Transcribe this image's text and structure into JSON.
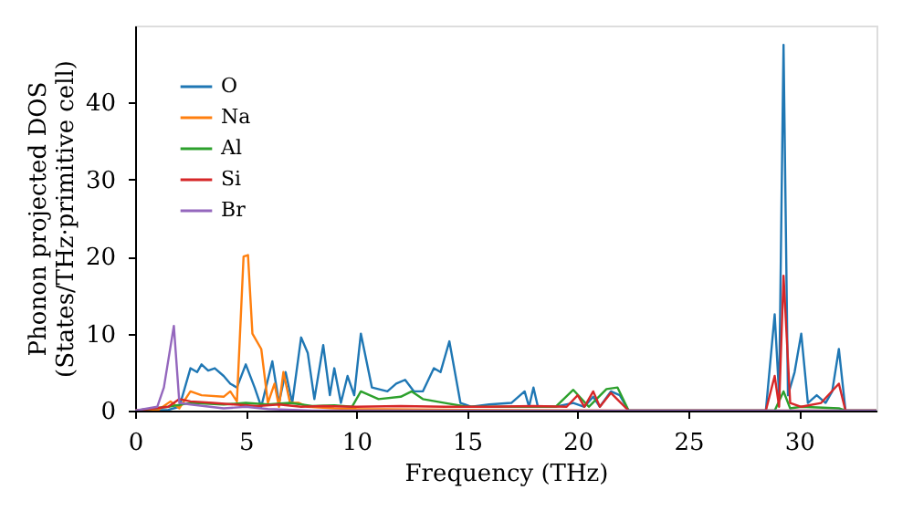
{
  "chart_data": {
    "type": "line",
    "xlabel": "Frequency (THz)",
    "ylabel": "Phonon projected DOS\n(States/THz·primitive cell)",
    "xlim": [
      0,
      33.5
    ],
    "ylim": [
      0,
      50
    ],
    "xticks": [
      0,
      5,
      10,
      15,
      20,
      25,
      30
    ],
    "yticks": [
      0,
      10,
      20,
      30,
      40
    ],
    "grid": false,
    "legend": "top left",
    "line_style": "solid",
    "marker": "none",
    "series": [
      {
        "name": "O",
        "color": "#1f77b4",
        "x": [
          0,
          1.5,
          2.0,
          2.5,
          2.8,
          3.0,
          3.3,
          3.6,
          4.0,
          4.3,
          4.6,
          5.0,
          5.4,
          5.7,
          6.2,
          6.5,
          6.8,
          7.1,
          7.5,
          7.8,
          8.1,
          8.5,
          8.8,
          9.0,
          9.3,
          9.6,
          9.9,
          10.2,
          10.7,
          11.4,
          11.8,
          12.2,
          12.6,
          13.0,
          13.5,
          13.8,
          14.2,
          14.7,
          15.2,
          16.0,
          17.0,
          17.6,
          17.8,
          18.0,
          18.2,
          19.0,
          19.8,
          20.3,
          20.7,
          21.0,
          21.5,
          21.9,
          22.3,
          28.5,
          28.9,
          29.1,
          29.3,
          29.5,
          29.8,
          30.1,
          30.4,
          30.8,
          31.2,
          31.5,
          31.8,
          32.1,
          33.5
        ],
        "values": [
          0,
          0.1,
          0.5,
          5.5,
          5.0,
          6.0,
          5.2,
          5.5,
          4.5,
          3.5,
          3.0,
          6.0,
          3.0,
          0.5,
          6.4,
          1.0,
          5.0,
          1.0,
          9.5,
          7.5,
          1.5,
          8.5,
          2.0,
          5.5,
          1.0,
          4.5,
          2.0,
          10.0,
          3.0,
          2.5,
          3.5,
          4.0,
          2.5,
          2.5,
          5.5,
          5.0,
          9.0,
          1.0,
          0.5,
          0.8,
          1.0,
          2.5,
          0.5,
          3.0,
          0.5,
          0.5,
          1.0,
          0.5,
          1.8,
          0.5,
          2.5,
          2.0,
          0,
          0,
          12.5,
          2.0,
          47.5,
          2.0,
          5.0,
          10.0,
          1.0,
          2.0,
          1.0,
          2.5,
          8.0,
          0,
          0
        ]
      },
      {
        "name": "Na",
        "color": "#ff7f0e",
        "x": [
          0,
          1.0,
          1.6,
          2.0,
          2.5,
          3.0,
          4.0,
          4.3,
          4.6,
          4.9,
          5.1,
          5.3,
          5.7,
          6.0,
          6.3,
          6.5,
          6.7,
          7.0,
          7.4,
          7.8,
          9.0,
          10.0,
          15.0,
          22.3,
          33.5
        ],
        "values": [
          0,
          0,
          1.2,
          0.3,
          2.5,
          2.0,
          1.8,
          2.5,
          1.2,
          20.0,
          20.2,
          10.0,
          8.0,
          1.0,
          3.5,
          0.5,
          5.0,
          1.0,
          1.0,
          0.5,
          0.3,
          0.2,
          0.1,
          0,
          0
        ]
      },
      {
        "name": "Al",
        "color": "#2ca02c",
        "x": [
          0,
          1.5,
          2.5,
          4.0,
          5.0,
          6.0,
          7.0,
          8.0,
          9.0,
          9.8,
          10.2,
          11.0,
          12.0,
          12.5,
          13.0,
          14.0,
          15.0,
          17.0,
          19.0,
          19.8,
          20.5,
          21.3,
          21.8,
          22.3,
          28.9,
          29.3,
          29.6,
          30.1,
          31.8,
          32.1,
          33.5
        ],
        "values": [
          0,
          0.5,
          1.0,
          0.8,
          1.0,
          0.8,
          1.0,
          0.6,
          0.7,
          0.5,
          2.5,
          1.5,
          1.8,
          2.5,
          1.5,
          1.0,
          0.5,
          0.5,
          0.5,
          2.7,
          0.5,
          2.8,
          3.0,
          0,
          0,
          2.5,
          0.3,
          0.5,
          0.3,
          0,
          0
        ]
      },
      {
        "name": "Si",
        "color": "#d62728",
        "x": [
          0,
          1.5,
          2.0,
          2.5,
          3.5,
          4.5,
          5.5,
          6.5,
          7.5,
          8.5,
          10.0,
          12.0,
          14.0,
          16.0,
          18.0,
          19.5,
          20.0,
          20.3,
          20.7,
          21.0,
          21.5,
          22.3,
          28.5,
          28.9,
          29.1,
          29.3,
          29.6,
          30.1,
          31.0,
          31.8,
          32.1,
          33.5
        ],
        "values": [
          0,
          0.5,
          1.5,
          1.2,
          1.0,
          0.8,
          0.6,
          0.8,
          0.5,
          0.6,
          0.5,
          0.6,
          0.5,
          0.5,
          0.6,
          0.5,
          2.0,
          0.5,
          2.5,
          0.5,
          2.3,
          0,
          0,
          4.5,
          0.5,
          17.5,
          1.0,
          0.5,
          1.0,
          3.5,
          0,
          0
        ]
      },
      {
        "name": "Br",
        "color": "#9467bd",
        "x": [
          0,
          1.0,
          1.3,
          1.75,
          2.0,
          2.5,
          4.0,
          5.0,
          6.0,
          8.0,
          33.5
        ],
        "values": [
          0,
          0.5,
          3.0,
          11.0,
          1.0,
          0.8,
          0.3,
          0.5,
          0.2,
          0,
          0
        ]
      }
    ]
  }
}
